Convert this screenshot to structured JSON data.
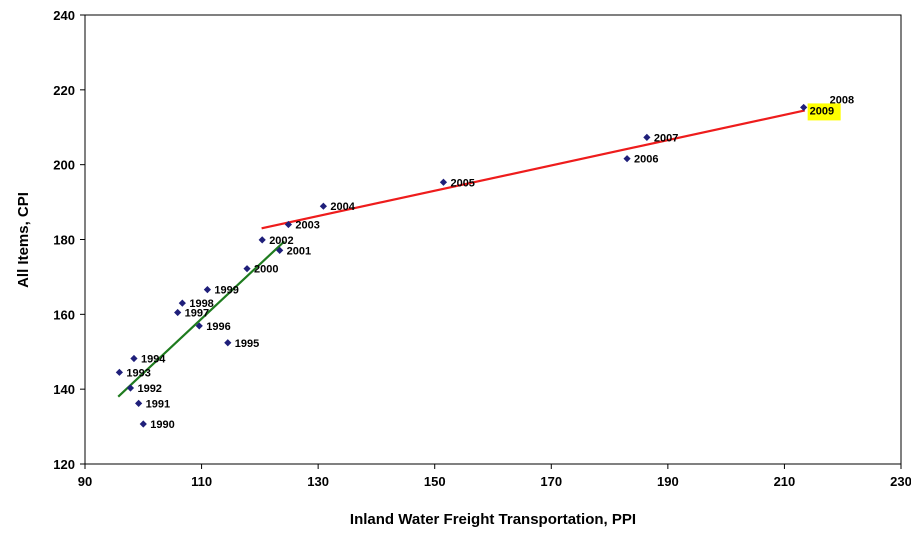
{
  "chart_data": {
    "type": "scatter",
    "title": "",
    "xlabel": "Inland Water Freight Transportation, PPI",
    "ylabel": "All Items, CPI",
    "xlim": [
      90,
      230
    ],
    "ylim": [
      120,
      240
    ],
    "xticks": [
      "90",
      "110",
      "130",
      "150",
      "170",
      "190",
      "210",
      "230"
    ],
    "yticks": [
      "120",
      "140",
      "160",
      "180",
      "200",
      "220",
      "240"
    ],
    "grid": false,
    "legend": "none",
    "marker_color": "#1f1f7a",
    "points": [
      {
        "label": "1990",
        "x": 100.0,
        "y": 130.7
      },
      {
        "label": "1991",
        "x": 99.2,
        "y": 136.2
      },
      {
        "label": "1992",
        "x": 97.8,
        "y": 140.3
      },
      {
        "label": "1993",
        "x": 95.9,
        "y": 144.5
      },
      {
        "label": "1994",
        "x": 98.4,
        "y": 148.2
      },
      {
        "label": "1995",
        "x": 114.5,
        "y": 152.4
      },
      {
        "label": "1996",
        "x": 109.6,
        "y": 156.9
      },
      {
        "label": "1997",
        "x": 105.9,
        "y": 160.5
      },
      {
        "label": "1998",
        "x": 106.7,
        "y": 163.0
      },
      {
        "label": "1999",
        "x": 111.0,
        "y": 166.6
      },
      {
        "label": "2000",
        "x": 117.8,
        "y": 172.2
      },
      {
        "label": "2001",
        "x": 123.4,
        "y": 177.1
      },
      {
        "label": "2002",
        "x": 120.4,
        "y": 179.9
      },
      {
        "label": "2003",
        "x": 124.9,
        "y": 184.0
      },
      {
        "label": "2004",
        "x": 130.9,
        "y": 188.9
      },
      {
        "label": "2005",
        "x": 151.5,
        "y": 195.3
      },
      {
        "label": "2006",
        "x": 183.0,
        "y": 201.6
      },
      {
        "label": "2007",
        "x": 186.4,
        "y": 207.3
      },
      {
        "label": "2008",
        "x": 213.3,
        "y": 215.3
      },
      {
        "label": "2009",
        "x": 213.3,
        "y": 214.5,
        "highlight": true
      }
    ],
    "trendlines": [
      {
        "color": "#1e7b1e",
        "x1": 95.7,
        "y1": 138.0,
        "x2": 124.2,
        "y2": 179.5
      },
      {
        "color": "#ee1c1c",
        "x1": 120.3,
        "y1": 183.0,
        "x2": 213.5,
        "y2": 214.5
      }
    ],
    "highlight_color": "#ffff00"
  }
}
